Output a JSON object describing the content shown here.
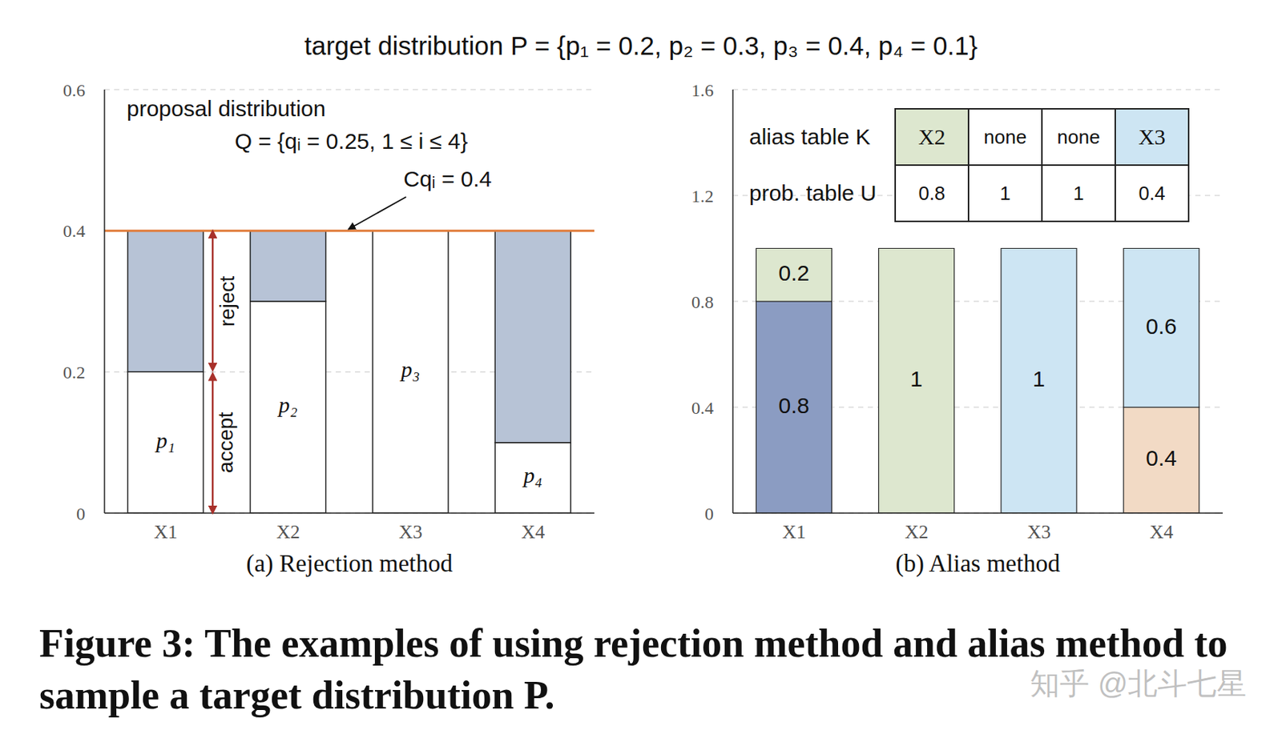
{
  "title": "target distribution P = {p₁ = 0.2, p₂ = 0.3, p₃ = 0.4, p₄ = 0.1}",
  "caption": "Figure 3: The examples of using rejection method and alias method to sample a target distribution P.",
  "watermark": "知乎 @北斗七星",
  "chart_data": [
    {
      "type": "bar",
      "title": "(a) Rejection method",
      "categories": [
        "X1",
        "X2",
        "X3",
        "X4"
      ],
      "stacked": true,
      "grid": true,
      "ylim": [
        0,
        0.6
      ],
      "yticks": [
        0,
        0.2,
        0.4,
        0.6
      ],
      "series": [
        {
          "name": "accept",
          "color": "#ffffff",
          "values": [
            0.2,
            0.3,
            0.4,
            0.1
          ],
          "labels": [
            "p₁",
            "p₂",
            "p₃",
            "p₄"
          ]
        },
        {
          "name": "reject",
          "color": "#b7c3d6",
          "values": [
            0.2,
            0.1,
            0,
            0.3
          ]
        }
      ],
      "annotations": [
        {
          "text": "proposal distribution"
        },
        {
          "text": "Q = {qᵢ = 0.25, 1 ≤ i ≤ 4}"
        }
      ],
      "reference_line": {
        "value": 0.4,
        "label": "Cqᵢ = 0.4",
        "color": "#e07b39"
      }
    },
    {
      "type": "bar",
      "title": "(b) Alias method",
      "categories": [
        "X1",
        "X2",
        "X3",
        "X4"
      ],
      "stacked": true,
      "grid": true,
      "data_labels": true,
      "ylim": [
        0,
        1.6
      ],
      "yticks": [
        0,
        0.4,
        0.8,
        1.2,
        1.6
      ],
      "series": [
        {
          "values": [
            0.8,
            1,
            1,
            0.4
          ],
          "colors": [
            "#8b9cc2",
            "#dde7cf",
            "#cde5f3",
            "#f2dac5"
          ]
        },
        {
          "values": [
            0.2,
            null,
            null,
            0.6
          ],
          "colors": [
            "#dde7cf",
            null,
            null,
            "#cde5f3"
          ]
        }
      ],
      "table": {
        "rows": [
          {
            "label": "alias table K",
            "cells": [
              "X2",
              "none",
              "none",
              "X3"
            ]
          },
          {
            "label": "prob. table U",
            "cells": [
              0.8,
              1,
              1,
              0.4
            ]
          }
        ]
      }
    }
  ]
}
